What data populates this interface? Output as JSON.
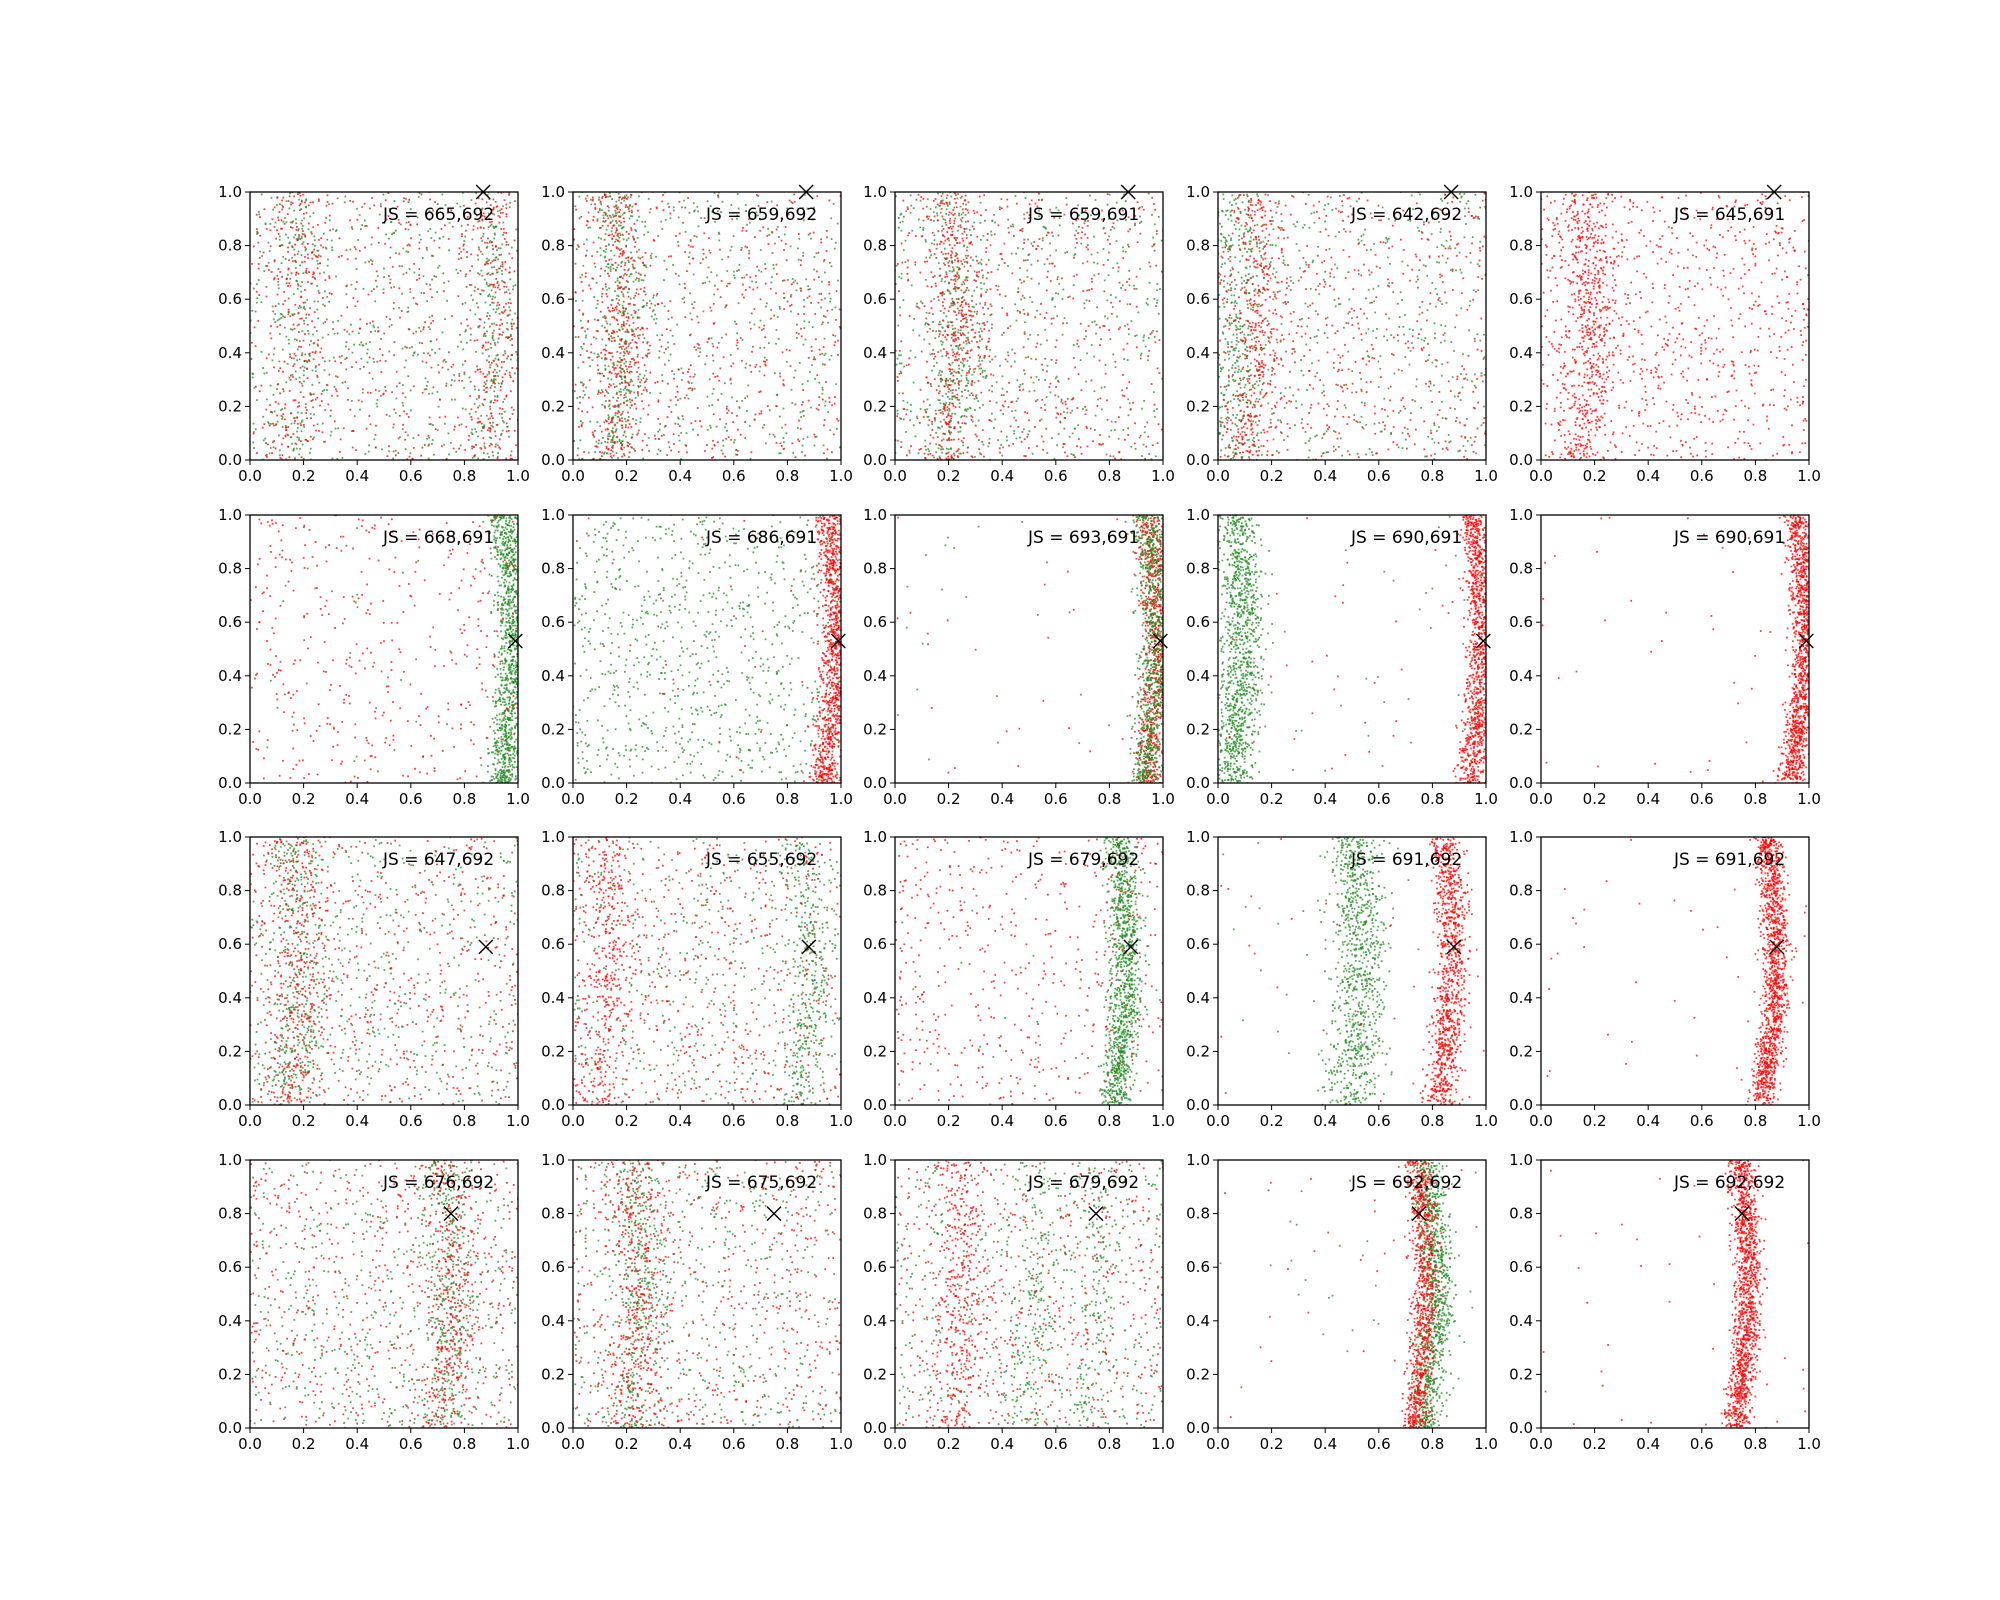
{
  "figure": {
    "grid_rows": 4,
    "grid_cols": 5,
    "marker": "x",
    "series_colors": {
      "green": "#228B22",
      "red": "#FF0000"
    }
  },
  "chart_data": [
    {
      "type": "scatter",
      "xlim": [
        0,
        1
      ],
      "ylim": [
        0,
        1
      ],
      "grid": false,
      "annotation": "JS = 665,692",
      "marker_point": [
        0.87,
        1.0
      ],
      "series": [
        {
          "color": "green",
          "distribution": "uniform+bands",
          "bands": [
            [
              0.15,
              0.05
            ],
            [
              0.88,
              0.04
            ]
          ],
          "count": 900
        },
        {
          "color": "red",
          "distribution": "uniform+bands",
          "bands": [
            [
              0.15,
              0.05
            ],
            [
              0.88,
              0.04
            ]
          ],
          "count": 900
        }
      ]
    },
    {
      "type": "scatter",
      "xlim": [
        0,
        1
      ],
      "ylim": [
        0,
        1
      ],
      "grid": false,
      "annotation": "JS = 659,692",
      "marker_point": [
        0.87,
        1.0
      ],
      "series": [
        {
          "color": "green",
          "distribution": "uniform+bands",
          "bands": [
            [
              0.15,
              0.05
            ]
          ],
          "count": 900
        },
        {
          "color": "red",
          "distribution": "uniform+bands",
          "bands": [
            [
              0.15,
              0.05
            ]
          ],
          "count": 900
        }
      ]
    },
    {
      "type": "scatter",
      "xlim": [
        0,
        1
      ],
      "ylim": [
        0,
        1
      ],
      "grid": false,
      "annotation": "JS = 659,691",
      "marker_point": [
        0.87,
        1.0
      ],
      "series": [
        {
          "color": "green",
          "distribution": "uniform+bands",
          "bands": [
            [
              0.2,
              0.06
            ]
          ],
          "count": 900
        },
        {
          "color": "red",
          "distribution": "uniform+bands",
          "bands": [
            [
              0.2,
              0.05
            ]
          ],
          "count": 900
        }
      ]
    },
    {
      "type": "scatter",
      "xlim": [
        0,
        1
      ],
      "ylim": [
        0,
        1
      ],
      "grid": false,
      "annotation": "JS = 642,692",
      "marker_point": [
        0.87,
        1.0
      ],
      "series": [
        {
          "color": "green",
          "distribution": "uniform+bands",
          "bands": [
            [
              0.05,
              0.05
            ]
          ],
          "count": 900
        },
        {
          "color": "red",
          "distribution": "uniform+bands",
          "bands": [
            [
              0.12,
              0.05
            ]
          ],
          "count": 900
        }
      ]
    },
    {
      "type": "scatter",
      "xlim": [
        0,
        1
      ],
      "ylim": [
        0,
        1
      ],
      "grid": false,
      "annotation": "JS = 645,691",
      "marker_point": [
        0.87,
        1.0
      ],
      "series": [
        {
          "color": "red",
          "distribution": "uniform+bands",
          "bands": [
            [
              0.15,
              0.05
            ]
          ],
          "count": 1400
        }
      ]
    },
    {
      "type": "scatter",
      "xlim": [
        0,
        1
      ],
      "ylim": [
        0,
        1
      ],
      "grid": false,
      "annotation": "JS = 668,691",
      "marker_point": [
        0.99,
        0.53
      ],
      "series": [
        {
          "color": "green",
          "distribution": "band",
          "center": 0.95,
          "width": 0.03,
          "count": 1200
        },
        {
          "color": "red",
          "distribution": "uniform",
          "count": 400
        }
      ]
    },
    {
      "type": "scatter",
      "xlim": [
        0,
        1
      ],
      "ylim": [
        0,
        1
      ],
      "grid": false,
      "annotation": "JS = 686,691",
      "marker_point": [
        0.99,
        0.53
      ],
      "series": [
        {
          "color": "green",
          "distribution": "uniform",
          "count": 900
        },
        {
          "color": "red",
          "distribution": "band",
          "center": 0.95,
          "width": 0.03,
          "count": 1100
        }
      ]
    },
    {
      "type": "scatter",
      "xlim": [
        0,
        1
      ],
      "ylim": [
        0,
        1
      ],
      "grid": false,
      "annotation": "JS = 693,691",
      "marker_point": [
        0.99,
        0.53
      ],
      "series": [
        {
          "color": "red",
          "distribution": "band",
          "center": 0.95,
          "width": 0.03,
          "count": 900
        },
        {
          "color": "green",
          "distribution": "band",
          "center": 0.94,
          "width": 0.03,
          "count": 900
        }
      ]
    },
    {
      "type": "scatter",
      "xlim": [
        0,
        1
      ],
      "ylim": [
        0,
        1
      ],
      "grid": false,
      "annotation": "JS = 690,691",
      "marker_point": [
        0.99,
        0.53
      ],
      "series": [
        {
          "color": "green",
          "distribution": "band",
          "center": 0.06,
          "width": 0.04,
          "count": 1100
        },
        {
          "color": "red",
          "distribution": "band",
          "center": 0.95,
          "width": 0.025,
          "count": 1100
        }
      ]
    },
    {
      "type": "scatter",
      "xlim": [
        0,
        1
      ],
      "ylim": [
        0,
        1
      ],
      "grid": false,
      "annotation": "JS = 690,691",
      "marker_point": [
        0.99,
        0.53
      ],
      "series": [
        {
          "color": "red",
          "distribution": "band",
          "center": 0.95,
          "width": 0.025,
          "count": 1300
        }
      ]
    },
    {
      "type": "scatter",
      "xlim": [
        0,
        1
      ],
      "ylim": [
        0,
        1
      ],
      "grid": false,
      "annotation": "JS = 647,692",
      "marker_point": [
        0.88,
        0.59
      ],
      "series": [
        {
          "color": "green",
          "distribution": "uniform+bands",
          "bands": [
            [
              0.15,
              0.06
            ]
          ],
          "count": 900
        },
        {
          "color": "red",
          "distribution": "uniform+bands",
          "bands": [
            [
              0.15,
              0.06
            ]
          ],
          "count": 900
        }
      ]
    },
    {
      "type": "scatter",
      "xlim": [
        0,
        1
      ],
      "ylim": [
        0,
        1
      ],
      "grid": false,
      "annotation": "JS = 655,692",
      "marker_point": [
        0.88,
        0.59
      ],
      "series": [
        {
          "color": "green",
          "distribution": "uniform+bands",
          "bands": [
            [
              0.85,
              0.04
            ]
          ],
          "count": 900
        },
        {
          "color": "red",
          "distribution": "uniform+bands",
          "bands": [
            [
              0.1,
              0.05
            ]
          ],
          "count": 900
        }
      ]
    },
    {
      "type": "scatter",
      "xlim": [
        0,
        1
      ],
      "ylim": [
        0,
        1
      ],
      "grid": false,
      "annotation": "JS = 679,692",
      "marker_point": [
        0.88,
        0.59
      ],
      "series": [
        {
          "color": "red",
          "distribution": "uniform",
          "count": 500
        },
        {
          "color": "green",
          "distribution": "band",
          "center": 0.83,
          "width": 0.03,
          "count": 1100
        }
      ]
    },
    {
      "type": "scatter",
      "xlim": [
        0,
        1
      ],
      "ylim": [
        0,
        1
      ],
      "grid": false,
      "annotation": "JS = 691,692",
      "marker_point": [
        0.88,
        0.59
      ],
      "series": [
        {
          "color": "green",
          "distribution": "band",
          "center": 0.5,
          "width": 0.05,
          "count": 900
        },
        {
          "color": "red",
          "distribution": "band",
          "center": 0.84,
          "width": 0.03,
          "count": 1000
        }
      ]
    },
    {
      "type": "scatter",
      "xlim": [
        0,
        1
      ],
      "ylim": [
        0,
        1
      ],
      "grid": false,
      "annotation": "JS = 691,692",
      "marker_point": [
        0.88,
        0.59
      ],
      "series": [
        {
          "color": "red",
          "distribution": "band",
          "center": 0.84,
          "width": 0.025,
          "count": 1300
        }
      ]
    },
    {
      "type": "scatter",
      "xlim": [
        0,
        1
      ],
      "ylim": [
        0,
        1
      ],
      "grid": false,
      "annotation": "JS = 676,692",
      "marker_point": [
        0.75,
        0.8
      ],
      "series": [
        {
          "color": "green",
          "distribution": "uniform+bands",
          "bands": [
            [
              0.72,
              0.05
            ]
          ],
          "count": 900
        },
        {
          "color": "red",
          "distribution": "uniform+bands",
          "bands": [
            [
              0.72,
              0.05
            ]
          ],
          "count": 900
        }
      ]
    },
    {
      "type": "scatter",
      "xlim": [
        0,
        1
      ],
      "ylim": [
        0,
        1
      ],
      "grid": false,
      "annotation": "JS = 675,692",
      "marker_point": [
        0.75,
        0.8
      ],
      "series": [
        {
          "color": "green",
          "distribution": "uniform+bands",
          "bands": [
            [
              0.22,
              0.05
            ]
          ],
          "count": 900
        },
        {
          "color": "red",
          "distribution": "uniform+bands",
          "bands": [
            [
              0.22,
              0.05
            ]
          ],
          "count": 900
        }
      ]
    },
    {
      "type": "scatter",
      "xlim": [
        0,
        1
      ],
      "ylim": [
        0,
        1
      ],
      "grid": false,
      "annotation": "JS = 679,692",
      "marker_point": [
        0.75,
        0.8
      ],
      "series": [
        {
          "color": "green",
          "distribution": "uniform+bands",
          "bands": [
            [
              0.5,
              0.05
            ],
            [
              0.72,
              0.04
            ]
          ],
          "count": 900
        },
        {
          "color": "red",
          "distribution": "uniform+bands",
          "bands": [
            [
              0.22,
              0.05
            ]
          ],
          "count": 900
        }
      ]
    },
    {
      "type": "scatter",
      "xlim": [
        0,
        1
      ],
      "ylim": [
        0,
        1
      ],
      "grid": false,
      "annotation": "JS = 692,692",
      "marker_point": [
        0.75,
        0.8
      ],
      "series": [
        {
          "color": "green",
          "distribution": "band",
          "center": 0.78,
          "width": 0.03,
          "count": 1000
        },
        {
          "color": "red",
          "distribution": "band",
          "center": 0.74,
          "width": 0.025,
          "count": 900
        }
      ]
    },
    {
      "type": "scatter",
      "xlim": [
        0,
        1
      ],
      "ylim": [
        0,
        1
      ],
      "grid": false,
      "annotation": "JS = 692,692",
      "marker_point": [
        0.75,
        0.8
      ],
      "series": [
        {
          "color": "red",
          "distribution": "band",
          "center": 0.74,
          "width": 0.025,
          "count": 1300
        }
      ]
    }
  ],
  "ticks": [
    "0.0",
    "0.2",
    "0.4",
    "0.6",
    "0.8",
    "1.0"
  ]
}
